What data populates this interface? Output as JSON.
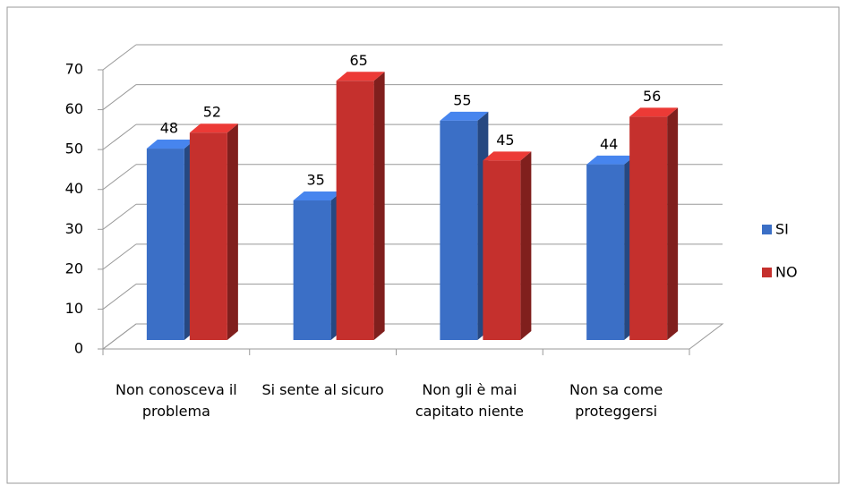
{
  "chart_data": {
    "type": "bar",
    "categories": [
      "Non conosceva il problema",
      "Si sente al sicuro",
      "Non gli è mai capitato niente",
      "Non sa come proteggersi"
    ],
    "series": [
      {
        "name": "SI",
        "color": "#3b6fc6",
        "values": [
          48,
          35,
          55,
          44
        ]
      },
      {
        "name": "NO",
        "color": "#c5302d",
        "values": [
          52,
          65,
          45,
          56
        ]
      }
    ],
    "ylim": [
      0,
      70
    ],
    "yticks": [
      0,
      10,
      20,
      30,
      40,
      50,
      60,
      70
    ],
    "grid": true,
    "legend": "right"
  }
}
